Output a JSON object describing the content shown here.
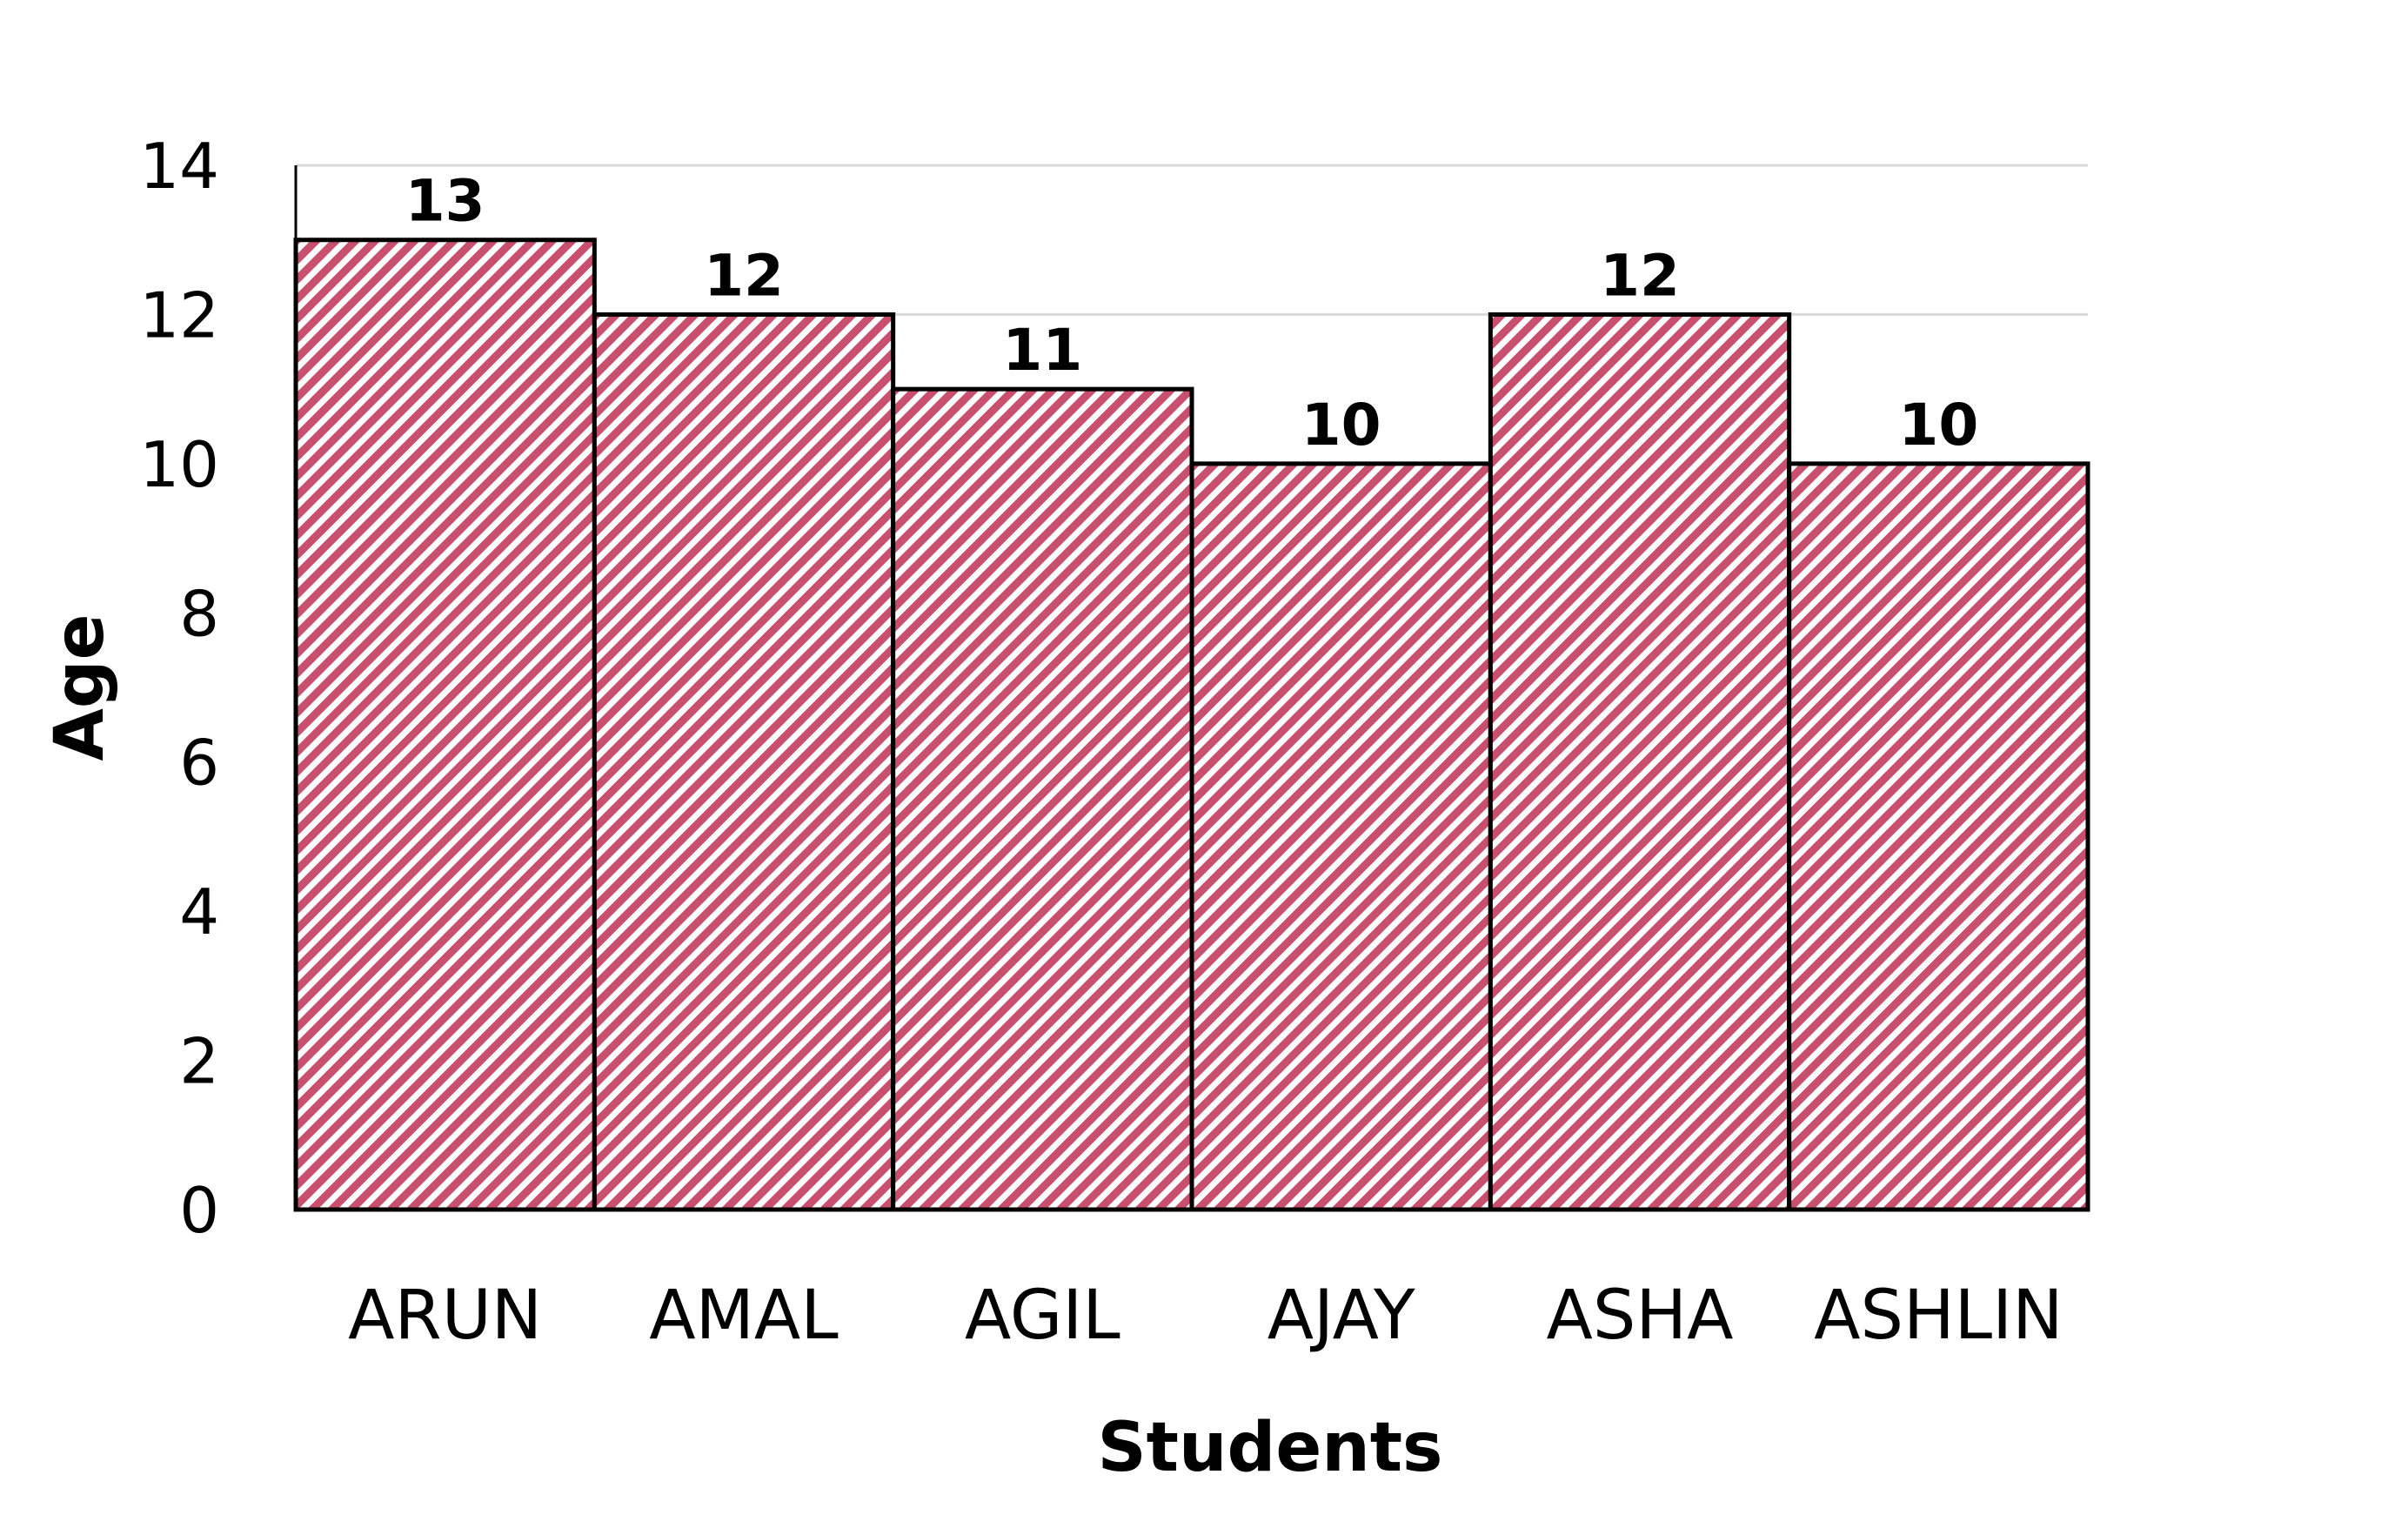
{
  "chart_data": {
    "type": "bar",
    "categories": [
      "ARUN",
      "AMAL",
      "AGIL",
      "AJAY",
      "ASHA",
      "ASHLIN"
    ],
    "values": [
      13,
      12,
      11,
      10,
      12,
      10
    ],
    "xlabel": "Students",
    "ylabel": "Age",
    "ylim": [
      0,
      14
    ],
    "yticks": [
      0,
      2,
      4,
      6,
      8,
      10,
      12,
      14
    ],
    "grid": true,
    "data_labels": true,
    "bar_fill": "#c8506e",
    "bar_pattern": "diagonal-hatch",
    "bar_gap": 0
  }
}
